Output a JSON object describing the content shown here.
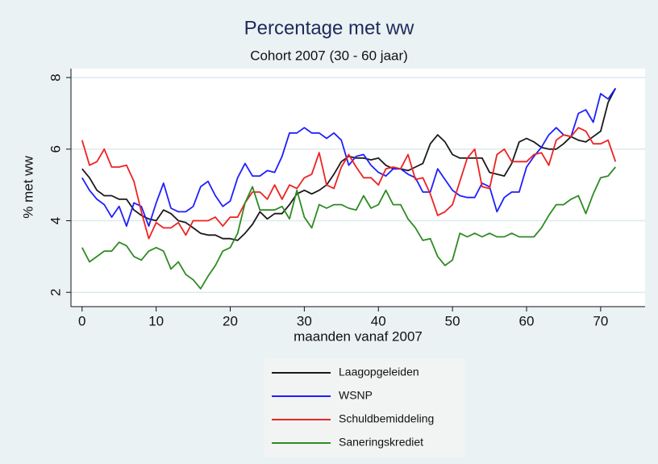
{
  "chart_data": {
    "type": "line",
    "title": "Percentage met ww",
    "subtitle": "Cohort 2007 (30 - 60 jaar)",
    "x_label": "maanden vanaf 2007",
    "y_label": "% met ww",
    "x": [
      0,
      1,
      2,
      3,
      4,
      5,
      6,
      7,
      8,
      9,
      10,
      11,
      12,
      13,
      14,
      15,
      16,
      17,
      18,
      19,
      20,
      21,
      22,
      23,
      24,
      25,
      26,
      27,
      28,
      29,
      30,
      31,
      32,
      33,
      34,
      35,
      36,
      37,
      38,
      39,
      40,
      41,
      42,
      43,
      44,
      45,
      46,
      47,
      48,
      49,
      50,
      51,
      52,
      53,
      54,
      55,
      56,
      57,
      58,
      59,
      60,
      61,
      62,
      63,
      64,
      65,
      66,
      67,
      68,
      69,
      70,
      71,
      72
    ],
    "xlim": [
      -1.5,
      76
    ],
    "xticks": [
      0,
      10,
      20,
      30,
      40,
      50,
      60,
      70
    ],
    "ylim": [
      1.6,
      8.25
    ],
    "yticks": [
      2,
      4,
      6,
      8
    ],
    "grid": true,
    "legend": "bottom",
    "series": [
      {
        "name": "Laagopgeleiden",
        "color": "#1a1a1a",
        "values": [
          5.45,
          5.2,
          4.85,
          4.7,
          4.7,
          4.6,
          4.6,
          4.3,
          4.15,
          4.05,
          4.0,
          4.3,
          4.2,
          4.0,
          3.95,
          3.8,
          3.65,
          3.6,
          3.6,
          3.5,
          3.5,
          3.45,
          3.65,
          3.9,
          4.25,
          4.05,
          4.2,
          4.2,
          4.45,
          4.75,
          4.85,
          4.75,
          4.85,
          5.0,
          5.3,
          5.65,
          5.8,
          5.75,
          5.75,
          5.7,
          5.75,
          5.55,
          5.45,
          5.45,
          5.4,
          5.5,
          5.6,
          6.15,
          6.4,
          6.2,
          5.85,
          5.75,
          5.75,
          5.75,
          5.75,
          5.35,
          5.3,
          5.25,
          5.6,
          6.2,
          6.3,
          6.2,
          6.05,
          6.0,
          6.0,
          6.15,
          6.35,
          6.25,
          6.2,
          6.35,
          6.5,
          7.3,
          7.7
        ]
      },
      {
        "name": "WSNP",
        "color": "#1f1fff",
        "values": [
          5.2,
          4.85,
          4.6,
          4.45,
          4.1,
          4.4,
          3.85,
          4.5,
          4.4,
          3.85,
          4.5,
          5.05,
          4.35,
          4.25,
          4.25,
          4.4,
          4.95,
          5.1,
          4.7,
          4.4,
          4.55,
          5.2,
          5.6,
          5.25,
          5.25,
          5.4,
          5.35,
          5.8,
          6.45,
          6.45,
          6.6,
          6.45,
          6.45,
          6.3,
          6.45,
          6.25,
          5.55,
          5.8,
          5.85,
          5.55,
          5.35,
          5.25,
          5.45,
          5.45,
          5.3,
          5.2,
          4.8,
          4.8,
          5.45,
          5.15,
          4.85,
          4.7,
          4.65,
          4.65,
          5.05,
          4.95,
          4.25,
          4.65,
          4.8,
          4.8,
          5.5,
          5.8,
          6.05,
          6.4,
          6.6,
          6.4,
          6.35,
          7.0,
          7.1,
          6.75,
          7.55,
          7.4,
          7.7
        ]
      },
      {
        "name": "Schuldbemiddeling",
        "color": "#ee2222",
        "values": [
          6.25,
          5.55,
          5.65,
          6.0,
          5.5,
          5.5,
          5.55,
          5.1,
          4.25,
          3.5,
          3.95,
          3.8,
          3.8,
          3.95,
          3.6,
          4.0,
          4.0,
          4.0,
          4.1,
          3.85,
          4.1,
          4.1,
          4.5,
          4.8,
          4.8,
          4.6,
          5.0,
          4.6,
          5.0,
          4.9,
          5.2,
          5.3,
          5.9,
          5.0,
          4.9,
          5.5,
          5.85,
          5.5,
          5.2,
          5.2,
          5.0,
          5.45,
          5.5,
          5.45,
          5.85,
          5.15,
          5.2,
          4.75,
          4.15,
          4.25,
          4.45,
          5.1,
          5.75,
          6.0,
          4.95,
          4.9,
          5.85,
          6.0,
          5.65,
          5.65,
          5.65,
          5.85,
          5.9,
          5.55,
          6.25,
          6.4,
          6.35,
          6.6,
          6.5,
          6.15,
          6.15,
          6.25,
          5.65
        ]
      },
      {
        "name": "Saneringskrediet",
        "color": "#2e8b22",
        "values": [
          3.25,
          2.85,
          3.0,
          3.15,
          3.15,
          3.4,
          3.3,
          3.0,
          2.9,
          3.15,
          3.25,
          3.15,
          2.65,
          2.85,
          2.5,
          2.35,
          2.1,
          2.45,
          2.75,
          3.15,
          3.25,
          3.65,
          4.5,
          4.95,
          4.3,
          4.3,
          4.3,
          4.4,
          4.05,
          4.85,
          4.1,
          3.8,
          4.45,
          4.35,
          4.45,
          4.45,
          4.35,
          4.3,
          4.7,
          4.35,
          4.45,
          4.85,
          4.45,
          4.45,
          4.05,
          3.8,
          3.45,
          3.5,
          3.0,
          2.75,
          2.9,
          3.65,
          3.55,
          3.65,
          3.55,
          3.65,
          3.55,
          3.55,
          3.65,
          3.55,
          3.55,
          3.55,
          3.8,
          4.15,
          4.45,
          4.45,
          4.6,
          4.7,
          4.2,
          4.75,
          5.2,
          5.25,
          5.5
        ]
      }
    ]
  }
}
